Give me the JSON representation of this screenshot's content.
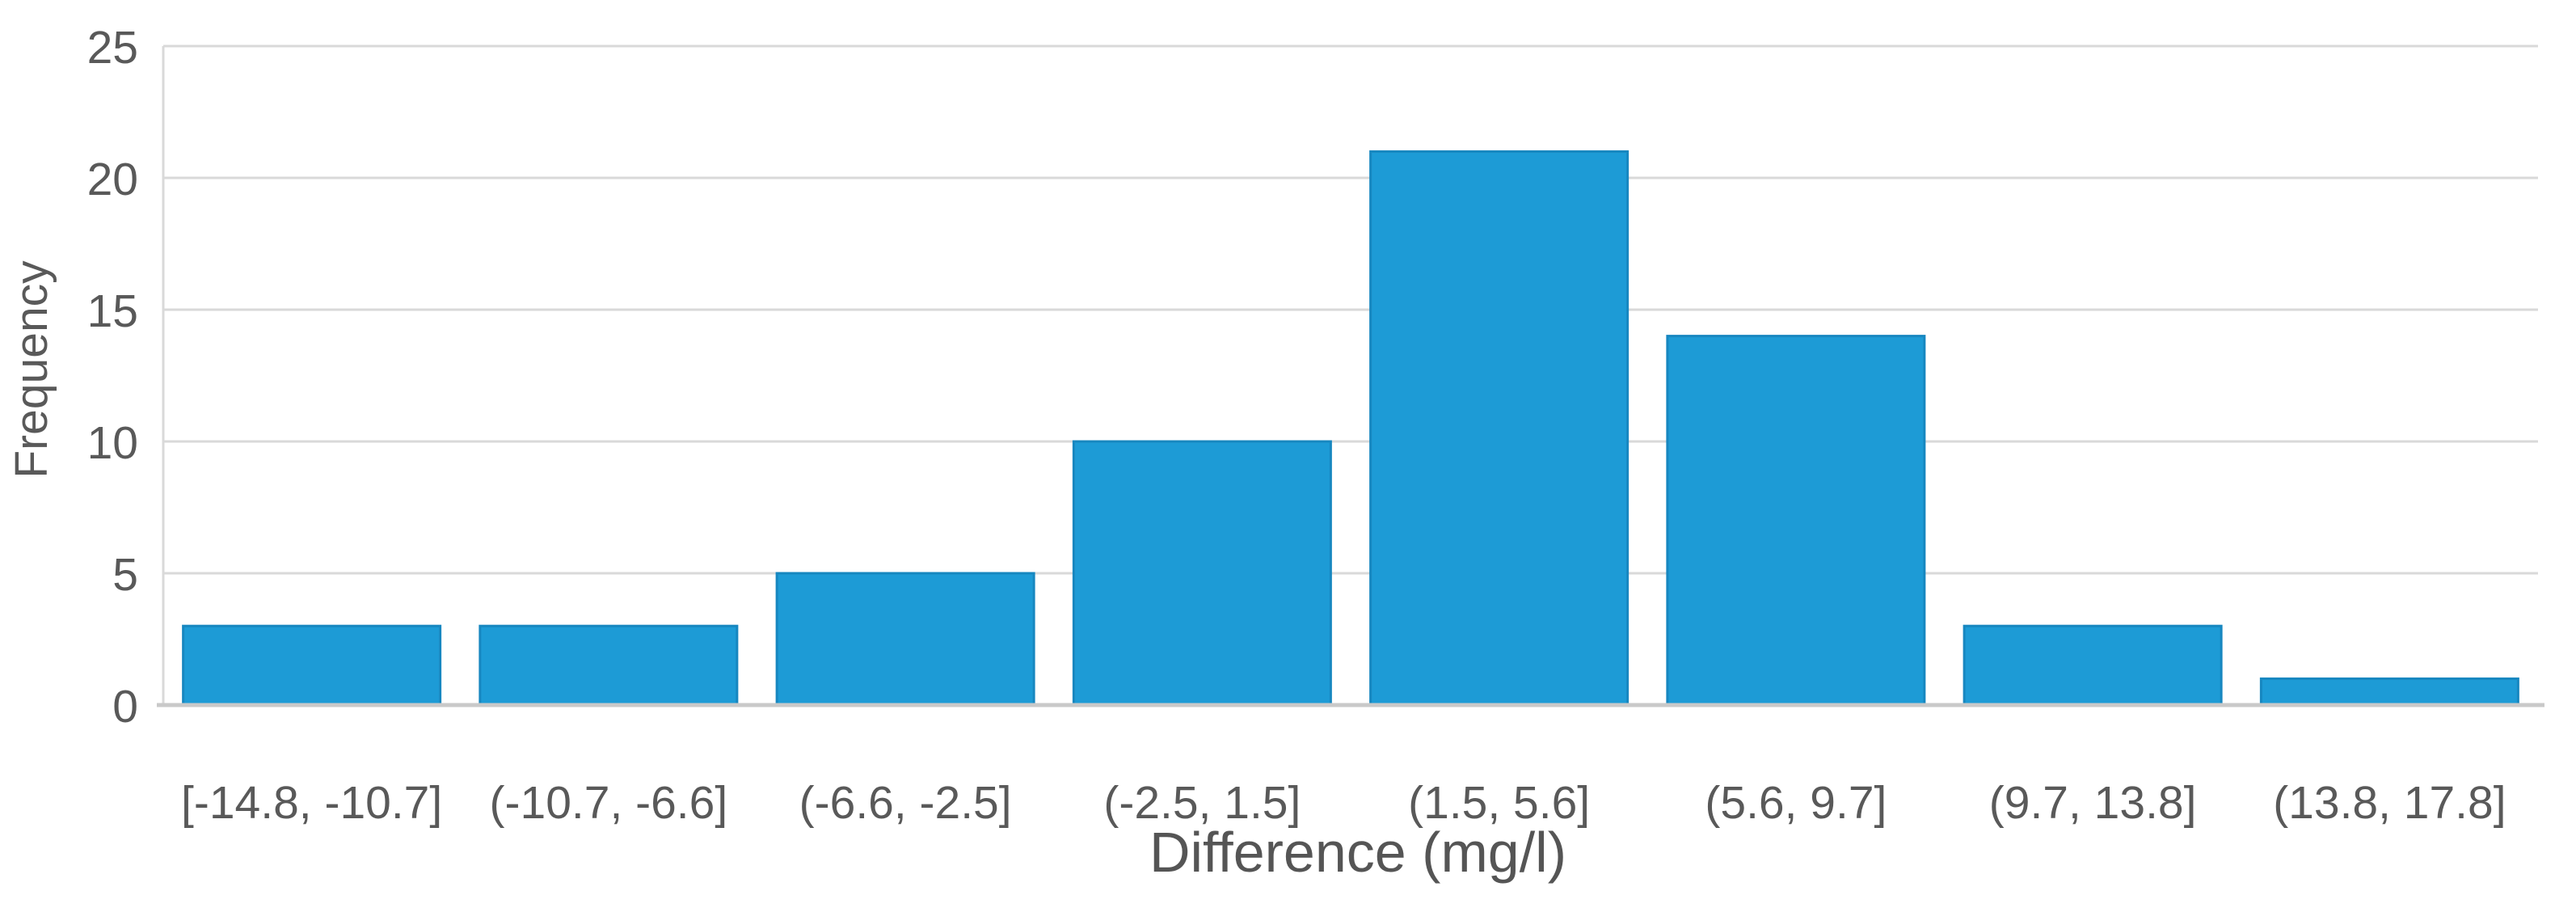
{
  "chart_data": {
    "type": "bar",
    "title": "",
    "xlabel": "Difference (mg/l)",
    "ylabel": "Frequency",
    "categories": [
      "[-14.8, -10.7]",
      "(-10.7, -6.6]",
      "(-6.6, -2.5]",
      "(-2.5, 1.5]",
      "(1.5, 5.6]",
      "(5.6, 9.7]",
      "(9.7, 13.8]",
      "(13.8, 17.8]"
    ],
    "values": [
      3,
      3,
      5,
      10,
      21,
      14,
      3,
      1
    ],
    "yticks": [
      0,
      5,
      10,
      15,
      20,
      25
    ],
    "ylim": [
      0,
      25
    ],
    "grid": "horizontal",
    "legend": "none",
    "colors": {
      "bar_fill": "#1D9BD6",
      "bar_edge": "#1787C0",
      "gridline": "#D9D9D9",
      "axis_line": "#C9C9C9",
      "text": "#595959"
    }
  }
}
